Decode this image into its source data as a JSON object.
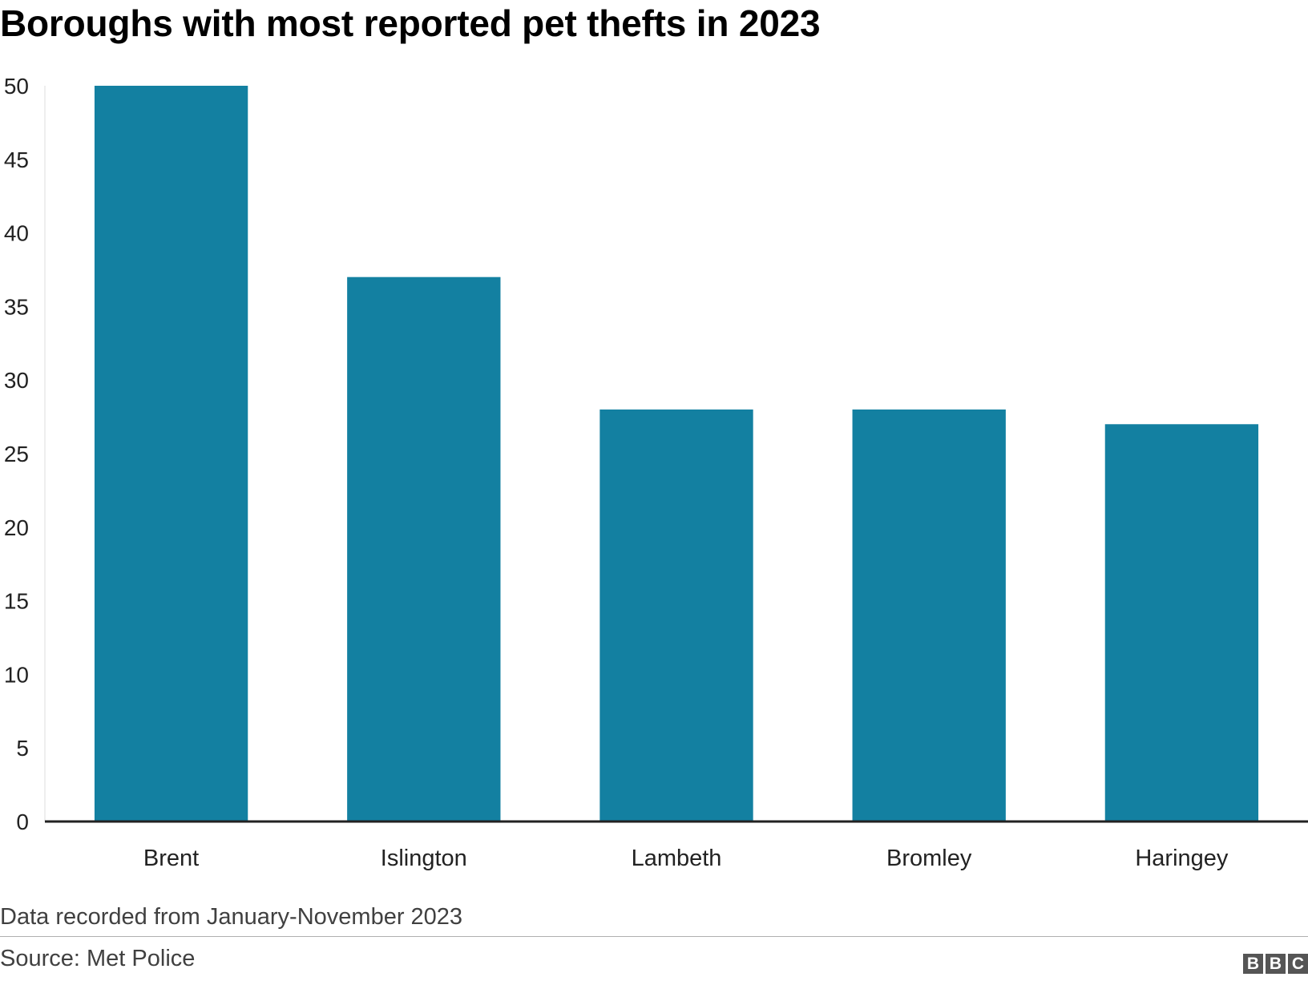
{
  "chart_data": {
    "type": "bar",
    "title": "Boroughs with most reported pet thefts in 2023",
    "categories": [
      "Brent",
      "Islington",
      "Lambeth",
      "Bromley",
      "Haringey"
    ],
    "values": [
      50,
      37,
      28,
      28,
      27
    ],
    "xlabel": "",
    "ylabel": "",
    "ylim": [
      0,
      50
    ],
    "yticks": [
      0,
      5,
      10,
      15,
      20,
      25,
      30,
      35,
      40,
      45,
      50
    ],
    "grid": false,
    "legend": "none",
    "bar_color": "#1380A1",
    "note": "Data recorded from January-November 2023",
    "source": "Source: Met Police"
  },
  "logo": {
    "letters": [
      "B",
      "B",
      "C"
    ],
    "color": "#555555"
  }
}
